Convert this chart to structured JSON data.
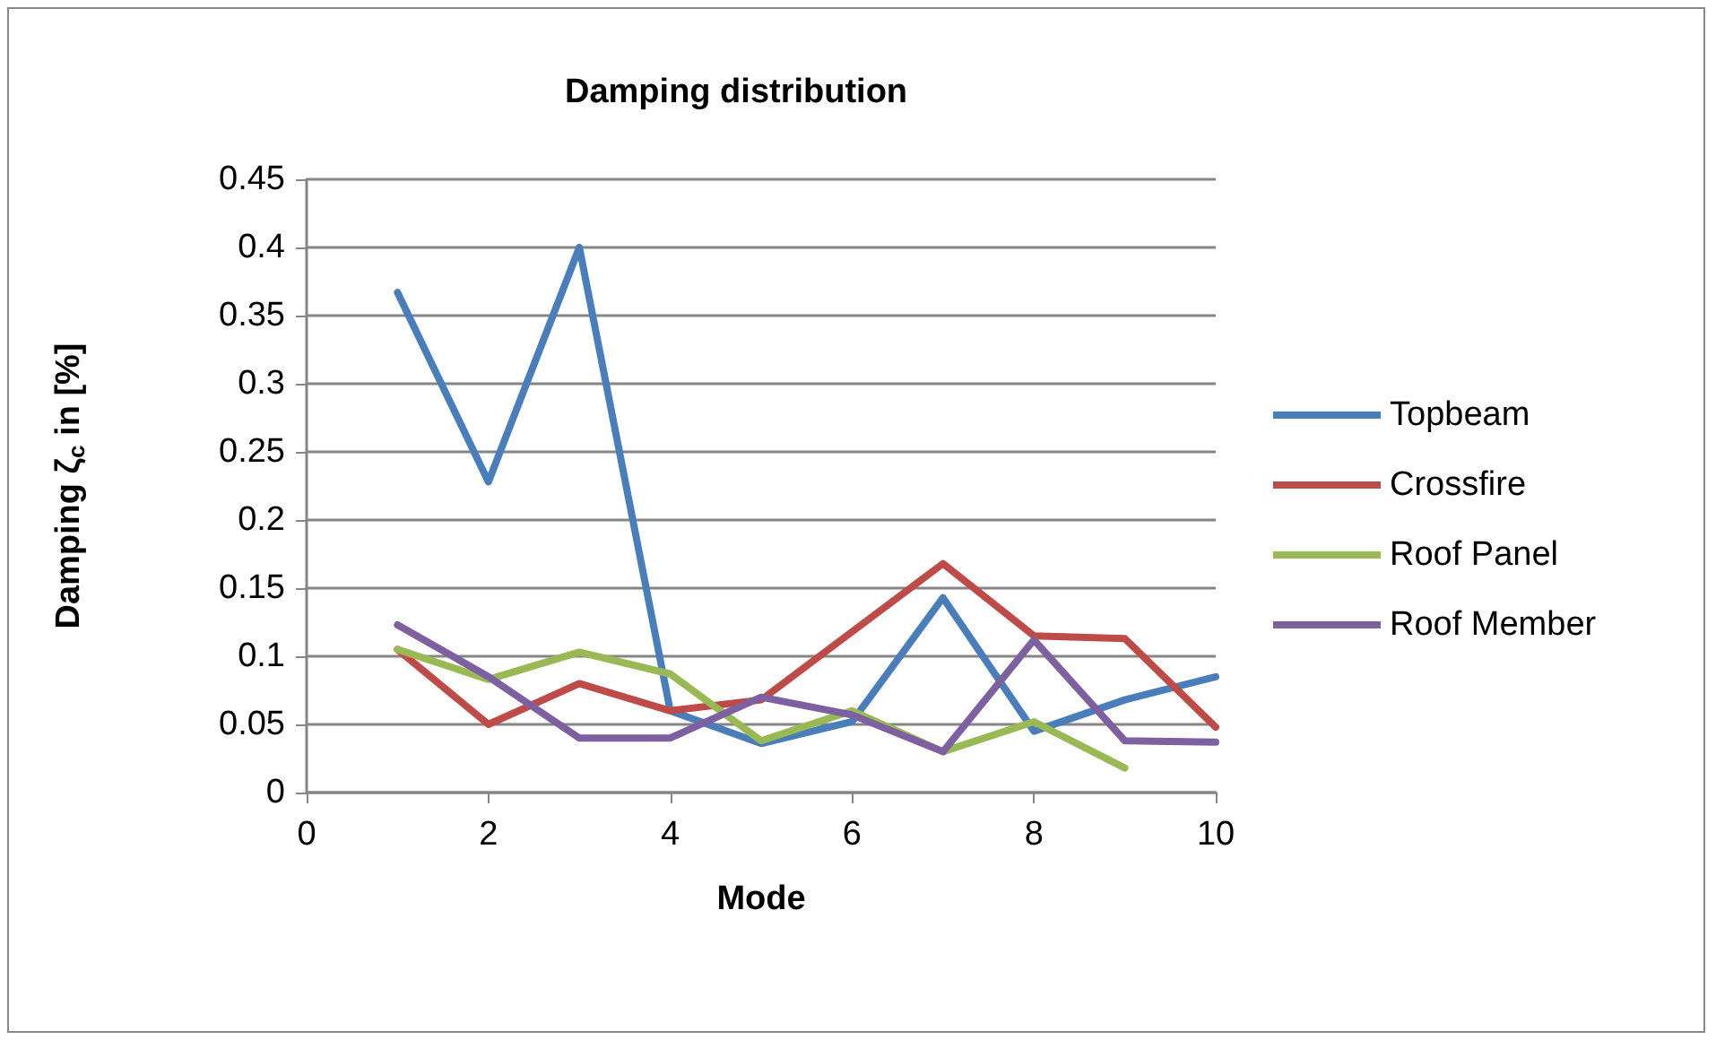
{
  "chart_data": {
    "type": "line",
    "title": "Damping distribution",
    "xlabel": "Mode",
    "ylabel": "Damping ζ$_{c}$ in [%]",
    "x": [
      1,
      2,
      3,
      4,
      5,
      6,
      7,
      8,
      9,
      10
    ],
    "series": [
      {
        "name": "Topbeam",
        "color": "#4a7ebb",
        "values": [
          0.367,
          0.228,
          0.4,
          0.06,
          0.036,
          0.052,
          0.143,
          0.045,
          0.068,
          0.085
        ]
      },
      {
        "name": "Crossfire",
        "color": "#be4b48",
        "values": [
          0.105,
          0.05,
          0.08,
          0.06,
          0.068,
          0.118,
          0.168,
          0.115,
          0.113,
          0.048
        ]
      },
      {
        "name": "Roof Panel",
        "color": "#98b954",
        "values": [
          0.105,
          0.083,
          0.103,
          0.087,
          0.038,
          0.06,
          0.03,
          0.052,
          0.018,
          null
        ]
      },
      {
        "name": "Roof Member",
        "color": "#7d60a0",
        "values": [
          0.123,
          0.085,
          0.04,
          0.04,
          0.07,
          0.057,
          0.03,
          0.112,
          0.038,
          0.037
        ]
      }
    ],
    "xlim": [
      0,
      10
    ],
    "xticks": [
      0,
      2,
      4,
      6,
      8,
      10
    ],
    "ylim": [
      0,
      0.45
    ],
    "yticks": [
      0,
      0.05,
      0.1,
      0.15,
      0.2,
      0.25,
      0.3,
      0.35,
      0.4,
      0.45
    ],
    "grid": "y",
    "legend": "right",
    "marker": "none",
    "line_style": "solid"
  }
}
